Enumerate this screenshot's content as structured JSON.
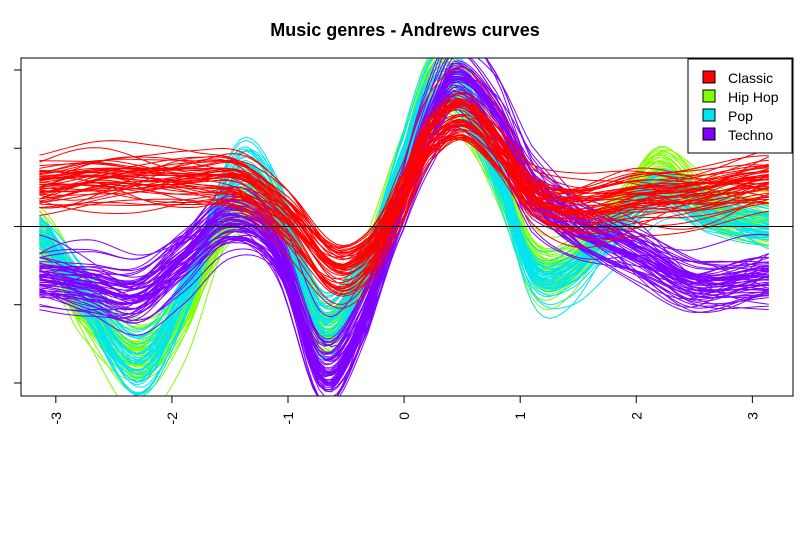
{
  "chart_data": {
    "type": "line",
    "title": "Music genres - Andrews curves",
    "xlabel": "",
    "ylabel": "",
    "xlim": [
      -3.14159,
      3.14159
    ],
    "ylim": [
      -1.0,
      1.0
    ],
    "x_ticks": [
      "-3",
      "-2",
      "-1",
      "0",
      "1",
      "2",
      "3"
    ],
    "x_tick_values": [
      -3,
      -2,
      -1,
      0,
      1,
      2,
      3
    ],
    "y_tick_count": 5,
    "y_tick_labels_visible": false,
    "reference_line_y": 0,
    "legend_position": "top-right",
    "grid": false,
    "series": [
      {
        "name": "Classic",
        "color": "#FF0000",
        "curve_count": 50,
        "template_x": [
          -3.14,
          -2.6,
          -2.2,
          -1.8,
          -1.4,
          -1.0,
          -0.6,
          -0.3,
          0.0,
          0.2,
          0.5,
          0.8,
          1.1,
          1.5,
          2.0,
          2.5,
          3.14
        ],
        "template_y": [
          0.25,
          0.3,
          0.3,
          0.3,
          0.28,
          0.05,
          -0.28,
          -0.18,
          0.22,
          0.55,
          0.7,
          0.5,
          0.2,
          0.12,
          0.18,
          0.2,
          0.28
        ]
      },
      {
        "name": "Hip Hop",
        "color": "#80FF00",
        "curve_count": 50,
        "template_x": [
          -3.14,
          -2.8,
          -2.3,
          -1.9,
          -1.5,
          -1.1,
          -0.7,
          -0.35,
          0.0,
          0.25,
          0.5,
          0.8,
          1.1,
          1.4,
          1.8,
          2.2,
          2.6,
          3.14
        ],
        "template_y": [
          -0.05,
          -0.45,
          -0.82,
          -0.55,
          0.05,
          0.1,
          -0.62,
          -0.3,
          0.4,
          0.88,
          0.8,
          0.35,
          -0.22,
          -0.25,
          0.05,
          0.35,
          0.15,
          0.05
        ]
      },
      {
        "name": "Pop",
        "color": "#00E5EE",
        "curve_count": 40,
        "template_x": [
          -3.14,
          -2.8,
          -2.3,
          -1.9,
          -1.45,
          -1.1,
          -0.7,
          -0.35,
          0.0,
          0.25,
          0.5,
          0.8,
          1.1,
          1.4,
          1.8,
          2.2,
          2.6,
          3.14
        ],
        "template_y": [
          -0.05,
          -0.4,
          -0.88,
          -0.45,
          0.35,
          0.15,
          -0.6,
          -0.25,
          0.45,
          0.88,
          0.85,
          0.35,
          -0.28,
          -0.3,
          0.0,
          0.25,
          0.1,
          0.0
        ]
      },
      {
        "name": "Techno",
        "color": "#8000FF",
        "curve_count": 60,
        "template_x": [
          -3.14,
          -2.7,
          -2.3,
          -1.9,
          -1.5,
          -1.1,
          -0.7,
          -0.35,
          0.0,
          0.25,
          0.45,
          0.8,
          1.1,
          1.5,
          2.0,
          2.5,
          3.14
        ],
        "template_y": [
          -0.35,
          -0.4,
          -0.45,
          -0.2,
          0.05,
          -0.15,
          -0.95,
          -0.6,
          0.2,
          0.7,
          0.95,
          0.7,
          0.25,
          0.0,
          -0.18,
          -0.38,
          -0.35
        ]
      }
    ]
  },
  "colors": {
    "axis": "#000000",
    "background": "#FFFFFF"
  }
}
